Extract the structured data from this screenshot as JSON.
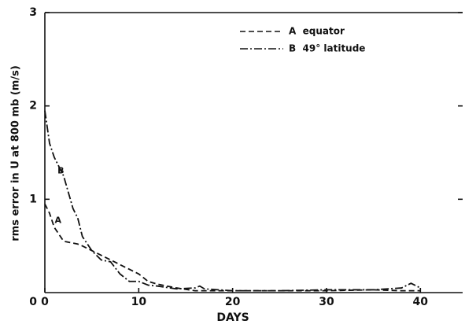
{
  "chart_data": {
    "type": "line",
    "xlabel": "DAYS",
    "ylabel": "rms error in U at 800 mb   (m/s)",
    "x": [
      0,
      0.5,
      1,
      2,
      3,
      3.5,
      4,
      5,
      6,
      7,
      8,
      9,
      10,
      11,
      12,
      14,
      16,
      16.5,
      17,
      20,
      25,
      30,
      35,
      38,
      39,
      40
    ],
    "series": [
      {
        "name": "A  equator",
        "color": "#111111",
        "dash": "dashed",
        "values": [
          0.95,
          0.85,
          0.7,
          0.55,
          0.53,
          0.52,
          0.5,
          0.45,
          0.4,
          0.35,
          0.3,
          0.25,
          0.2,
          0.12,
          0.09,
          0.05,
          0.02,
          0.02,
          0.02,
          0.02,
          0.02,
          0.02,
          0.03,
          0.02,
          0.02,
          0.02
        ]
      },
      {
        "name": "B  49° latitude",
        "color": "#111111",
        "dash": "dashdot",
        "values": [
          1.95,
          1.6,
          1.45,
          1.25,
          0.9,
          0.8,
          0.6,
          0.45,
          0.35,
          0.33,
          0.2,
          0.12,
          0.12,
          0.08,
          0.07,
          0.04,
          0.05,
          0.07,
          0.04,
          0.02,
          0.02,
          0.03,
          0.03,
          0.05,
          0.1,
          0.05
        ]
      }
    ],
    "annotations": [
      {
        "text": "A",
        "x": 1.4,
        "y": 0.77
      },
      {
        "text": "B",
        "x": 1.7,
        "y": 1.3
      }
    ],
    "xlim": [
      0,
      44.5
    ],
    "ylim": [
      0,
      3
    ],
    "xticks": [
      0,
      10,
      20,
      30,
      40
    ],
    "yticks": [
      1,
      2,
      3
    ],
    "grid": false,
    "legend": "top-right"
  }
}
